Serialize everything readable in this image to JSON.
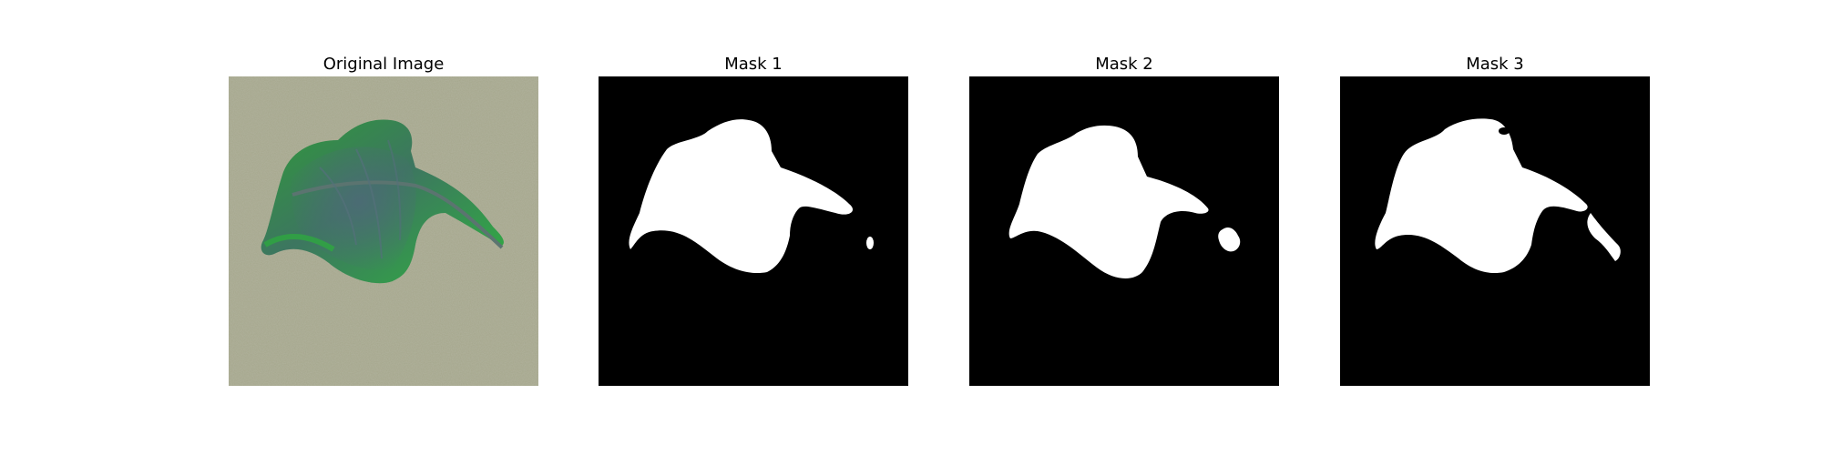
{
  "figure": {
    "panels": [
      {
        "title": "Original Image",
        "image": "leaf-photo"
      },
      {
        "title": "Mask 1",
        "image": "binary-mask"
      },
      {
        "title": "Mask 2",
        "image": "binary-mask"
      },
      {
        "title": "Mask 3",
        "image": "binary-mask"
      }
    ],
    "colors": {
      "background": "#ffffff",
      "mask_background": "#000000",
      "mask_foreground": "#ffffff",
      "carpet": "#a7a98c",
      "leaf_green": "#38b03a",
      "leaf_dark": "#4a6a6e"
    }
  }
}
